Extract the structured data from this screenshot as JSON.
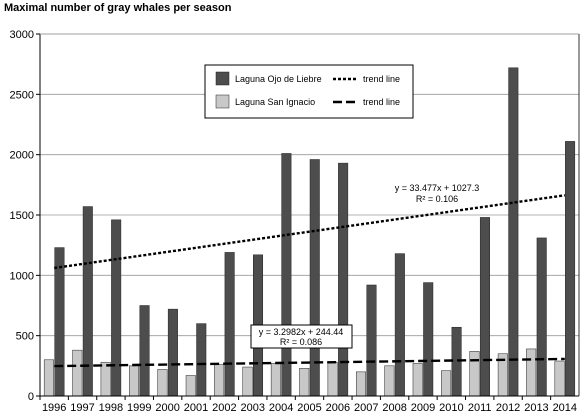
{
  "chart_data": {
    "type": "bar",
    "title": "Maximal number of gray whales per season",
    "xlabel": "",
    "ylabel": "",
    "ylim": [
      0,
      3000
    ],
    "yticks": [
      0,
      500,
      1000,
      1500,
      2000,
      2500,
      3000
    ],
    "grid": true,
    "legend_position": "top-center",
    "categories": [
      "1996",
      "1997",
      "1998",
      "1999",
      "2000",
      "2001",
      "2002",
      "2003",
      "2004",
      "2005",
      "2006",
      "2007",
      "2008",
      "2009",
      "2010",
      "2011",
      "2012",
      "2013",
      "2014"
    ],
    "series": [
      {
        "name": "Laguna Ojo de Liebre",
        "color": "#4d4d4d",
        "values": [
          1230,
          1570,
          1460,
          750,
          720,
          600,
          1190,
          1170,
          2010,
          1960,
          1930,
          920,
          1180,
          940,
          570,
          1480,
          2720,
          1310,
          2110
        ]
      },
      {
        "name": "Laguna San Ignacio",
        "color": "#c8c8c8",
        "values": [
          300,
          380,
          280,
          250,
          220,
          170,
          260,
          240,
          270,
          230,
          280,
          200,
          250,
          270,
          210,
          370,
          350,
          390,
          290
        ]
      }
    ],
    "trend_lines": [
      {
        "series": "Laguna Ojo de Liebre",
        "legend_label": "trend line",
        "style": "dotted",
        "slope": 33.477,
        "intercept": 1027.3,
        "equation": "y = 33.477x + 1027.3",
        "r2": "R² = 0.106"
      },
      {
        "series": "Laguna San Ignacio",
        "legend_label": "trend line",
        "style": "dashed",
        "slope": 3.2982,
        "intercept": 244.44,
        "equation": "y = 3.2982x + 244.44",
        "r2": "R² = 0.086"
      }
    ]
  }
}
